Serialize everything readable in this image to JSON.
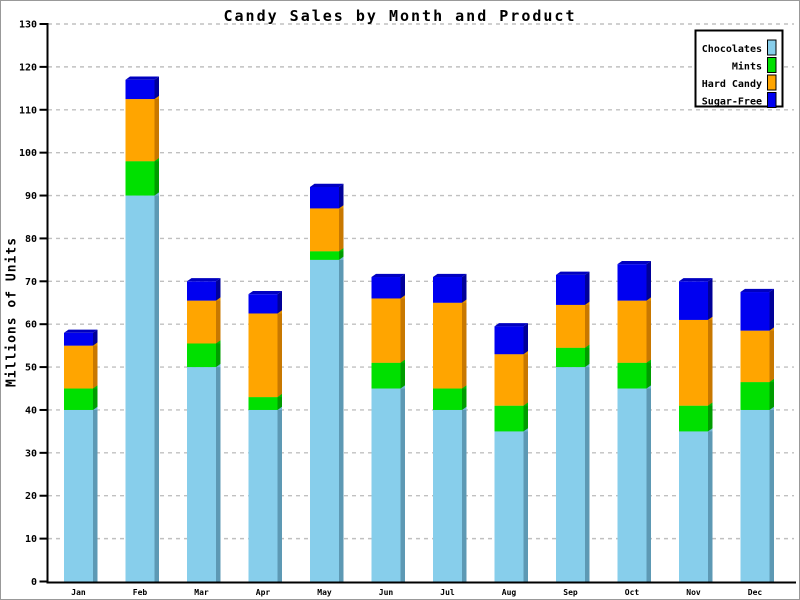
{
  "page": {
    "title": "Candy Sales by Month and Product"
  },
  "chart_data": {
    "type": "bar",
    "stacked": true,
    "pseudo_3d": true,
    "title": "Candy Sales by Month and Product",
    "xlabel": "",
    "ylabel": "Millions of Units",
    "ylim": [
      0,
      130
    ],
    "ytick_step": 10,
    "ytick_labels": [
      "0",
      "10",
      "20",
      "30",
      "40",
      "50",
      "60",
      "70",
      "80",
      "90",
      "100",
      "110",
      "120",
      "130"
    ],
    "grid": "horizontal-dashed",
    "grid_color": "#C0C0C0",
    "axis_color": "#000000",
    "background": "#FFFFFF",
    "legend_position": "top-right",
    "categories": [
      "Jan",
      "Feb",
      "Mar",
      "Apr",
      "May",
      "Jun",
      "Jul",
      "Aug",
      "Sep",
      "Oct",
      "Nov",
      "Dec"
    ],
    "series": [
      {
        "name": "Chocolates",
        "color": "#87CEEB",
        "side_color": "#5D99B4",
        "top_color": "#74B6D4",
        "values": [
          40,
          90,
          50,
          40,
          75,
          45,
          40,
          35,
          50,
          45,
          35,
          40
        ]
      },
      {
        "name": "Mints",
        "color": "#00E000",
        "side_color": "#009C00",
        "top_color": "#00BC00",
        "values": [
          5,
          8,
          5.5,
          3,
          2,
          6,
          5,
          6,
          4.5,
          6,
          6,
          6.5
        ]
      },
      {
        "name": "Hard Candy",
        "color": "#FFA500",
        "side_color": "#C87800",
        "top_color": "#E09200",
        "values": [
          10,
          14.5,
          10,
          19.5,
          10,
          15,
          20,
          12,
          10,
          14.5,
          20,
          12
        ]
      },
      {
        "name": "Sugar-Free",
        "color": "#0000F0",
        "side_color": "#000098",
        "top_color": "#0000C0",
        "values": [
          3,
          4.5,
          4.5,
          4.5,
          5,
          5,
          6,
          6.5,
          7,
          8.5,
          9,
          9
        ]
      }
    ],
    "totals": [
      58,
      117,
      70,
      67,
      92,
      71,
      71,
      59.5,
      71.5,
      74,
      70,
      67.5
    ]
  }
}
